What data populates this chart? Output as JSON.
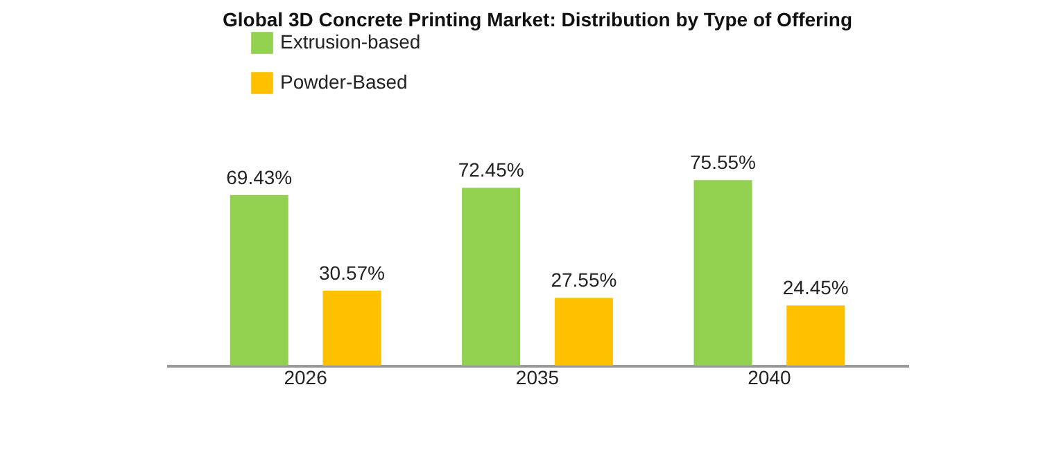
{
  "chart_data": {
    "type": "bar",
    "title": "Global 3D Concrete Printing Market: Distribution by Type of Offering",
    "categories": [
      "2026",
      "2035",
      "2040"
    ],
    "series": [
      {
        "name": "Extrusion-based",
        "color": "#92d050",
        "values": [
          69.43,
          72.45,
          75.55
        ],
        "value_labels": [
          "69.43%",
          "72.45%",
          "75.55%"
        ]
      },
      {
        "name": "Powder-Based",
        "color": "#ffc000",
        "values": [
          30.57,
          27.55,
          24.45
        ],
        "value_labels": [
          "30.57%",
          "27.55%",
          "24.45%"
        ]
      }
    ],
    "legend": "top left",
    "grid": false
  }
}
